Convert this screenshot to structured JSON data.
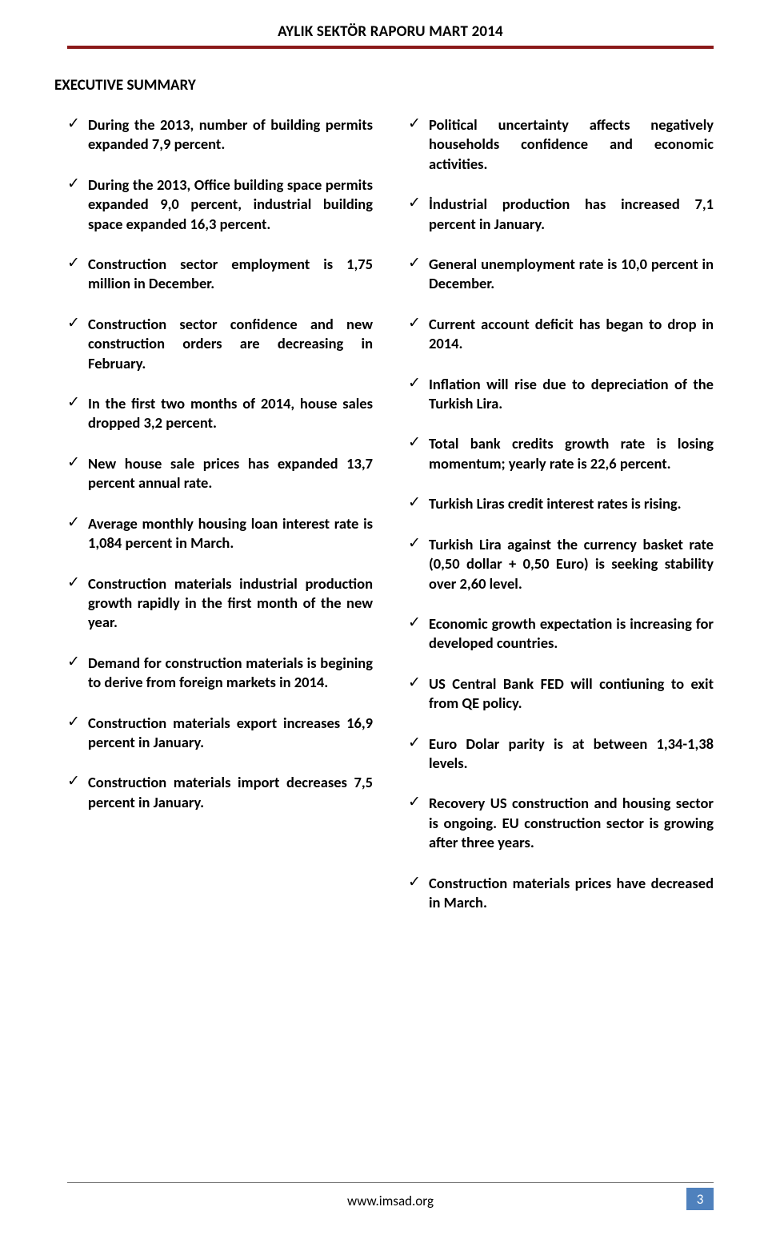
{
  "header": {
    "title": "AYLIK SEKTÖR RAPORU MART 2014",
    "rule_color_top": "#8b1a1a",
    "rule_color_bottom": "#8b1a1a"
  },
  "section_title": "EXECUTIVE SUMMARY",
  "left_items": [
    "During the 2013, number of building permits expanded 7,9 percent.",
    "During the 2013, Office building space permits expanded 9,0 percent, industrial building space expanded 16,3 percent.",
    "Construction sector employment is 1,75 million  in December.",
    "Construction sector confidence and new construction orders are decreasing in February.",
    "In the first two months of 2014, house sales dropped 3,2 percent.",
    "New house sale prices has expanded 13,7 percent annual rate.",
    "Average monthly housing loan interest rate is 1,084 percent in March.",
    "Construction materials industrial production growth rapidly in the first month of the new year.",
    "Demand for construction materials is begining to derive from foreign markets in 2014.",
    "Construction materials export  increases 16,9 percent in January.",
    "Construction materials import decreases 7,5 percent in January."
  ],
  "right_items": [
    "Political uncertainty affects negatively households confidence and economic activities.",
    "İndustrial production has increased 7,1 percent in January.",
    "General unemployment rate is 10,0 percent in December.",
    "Current account deficit has began to drop in 2014.",
    "Inflation will rise due to depreciation of the Turkish Lira.",
    "Total bank credits growth rate is losing momentum;  yearly rate is 22,6 percent.",
    "Turkish Liras credit interest rates is rising.",
    "Turkish Lira against the currency basket rate (0,50 dollar + 0,50 Euro) is seeking stability over 2,60 level.",
    "Economic growth expectation is increasing for developed countries.",
    "US Central Bank FED will contiuning to exit from QE policy.",
    "Euro Dolar parity is at between 1,34-1,38 levels.",
    "Recovery US construction and housing sector is ongoing.  EU construction sector  is growing after three years.",
    "Construction materials prices have decreased  in March."
  ],
  "footer": {
    "url": "www.imsad.org",
    "page_number": "3",
    "badge_bg": "#4f81bd",
    "badge_fg": "#ffffff",
    "rule_color": "#7a7a7a"
  }
}
